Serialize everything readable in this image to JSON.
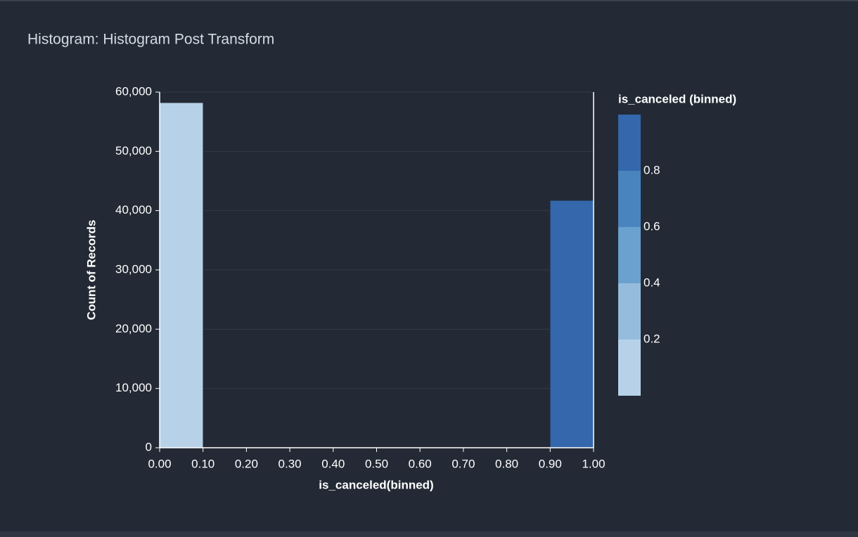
{
  "chart_data": {
    "type": "histogram",
    "title": "Histogram: Histogram Post Transform",
    "bins": [
      0,
      0.1,
      0.2,
      0.3,
      0.4,
      0.5,
      0.6,
      0.7,
      0.8,
      0.9,
      1
    ],
    "values": [
      58200,
      0,
      0,
      0,
      0,
      0,
      0,
      0,
      0,
      41700
    ],
    "xlabel": "is_canceled(binned)",
    "ylabel": "Count of Records",
    "xlim": [
      0,
      1
    ],
    "ylim": [
      0,
      60000
    ],
    "xticks": [
      {
        "value": 0,
        "label": "0.00"
      },
      {
        "value": 0.1,
        "label": "0.10"
      },
      {
        "value": 0.2,
        "label": "0.20"
      },
      {
        "value": 0.3,
        "label": "0.30"
      },
      {
        "value": 0.4,
        "label": "0.40"
      },
      {
        "value": 0.5,
        "label": "0.50"
      },
      {
        "value": 0.6,
        "label": "0.60"
      },
      {
        "value": 0.7,
        "label": "0.70"
      },
      {
        "value": 0.8,
        "label": "0.80"
      },
      {
        "value": 0.9,
        "label": "0.90"
      },
      {
        "value": 1,
        "label": "1.00"
      }
    ],
    "yticks": [
      0,
      {
        "value": 10000,
        "label": "10,000"
      },
      {
        "value": 20000,
        "label": "20,000"
      },
      {
        "value": 30000,
        "label": "30,000"
      },
      {
        "value": 40000,
        "label": "40,000"
      },
      {
        "value": 50000,
        "label": "50,000"
      },
      {
        "value": 60000,
        "label": "60,000"
      }
    ],
    "grid": true,
    "legend": {
      "title": "is_canceled (binned)",
      "lim": [
        0,
        1
      ],
      "ticks": [
        0.2,
        0.4,
        0.6,
        0.8
      ],
      "colors": [
        "#b7d2e8",
        "#95bcdd",
        "#6aa1cf",
        "#4a84bf",
        "#3467ab"
      ]
    }
  }
}
